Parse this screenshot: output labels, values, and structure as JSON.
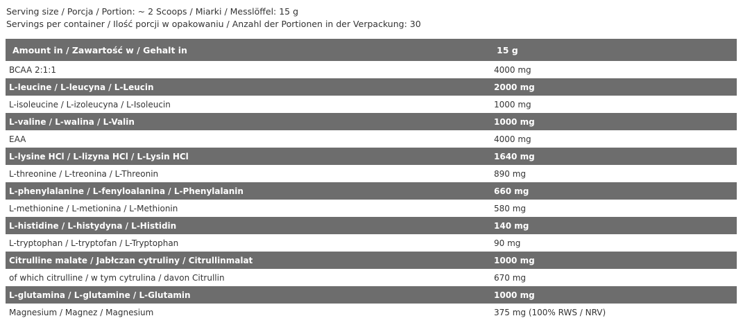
{
  "intro": {
    "serving_size": "Serving size / Porcja / Portion: ~ 2 Scoops / Miarki / Messlöffel: 15 g",
    "servings_per_container": "Servings per container / Ilość porcji w opakowaniu / Anzahl der Portionen in der Verpackung: 30"
  },
  "table": {
    "header": {
      "name": "Amount in / Zawartość w / Gehalt in",
      "value": "15 g"
    },
    "rows": [
      {
        "name": "BCAA 2:1:1",
        "value": "4000 mg",
        "dark": false
      },
      {
        "name": "L-leucine / L-leucyna / L-Leucin",
        "value": "2000 mg",
        "dark": true
      },
      {
        "name": "L-isoleucine / L-izoleucyna / L-Isoleucin",
        "value": "1000 mg",
        "dark": false
      },
      {
        "name": "L-valine / L-walina / L-Valin",
        "value": "1000 mg",
        "dark": true
      },
      {
        "name": "EAA",
        "value": "4000 mg",
        "dark": false
      },
      {
        "name": "L-lysine HCl / L-lizyna HCl / L-Lysin HCl",
        "value": "1640 mg",
        "dark": true
      },
      {
        "name": "L-threonine / L-treonina / L-Threonin",
        "value": "890 mg",
        "dark": false
      },
      {
        "name": "L-phenylalanine / L-fenyloalanina / L-Phenylalanin",
        "value": "660 mg",
        "dark": true
      },
      {
        "name": "L-methionine / L-metionina / L-Methionin",
        "value": "580 mg",
        "dark": false
      },
      {
        "name": "L-histidine / L-histydyna / L-Histidin",
        "value": "140 mg",
        "dark": true
      },
      {
        "name": "L-tryptophan / L-tryptofan / L-Tryptophan",
        "value": "90 mg",
        "dark": false
      },
      {
        "name": "Citrulline malate / Jabłczan cytruliny / Citrullinmalat",
        "value": "1000 mg",
        "dark": true
      },
      {
        "name": "of which citrulline / w tym cytrulina / davon Citrullin",
        "value": "670 mg",
        "dark": false
      },
      {
        "name": "L-glutamina / L-glutamine / L-Glutamin",
        "value": "1000 mg",
        "dark": true
      },
      {
        "name": "Magnesium / Magnez / Magnesium",
        "value": "375 mg (100% RWS / NRV)",
        "dark": false
      }
    ]
  },
  "colors": {
    "row_dark": "#6d6d6d",
    "text": "#333333"
  }
}
